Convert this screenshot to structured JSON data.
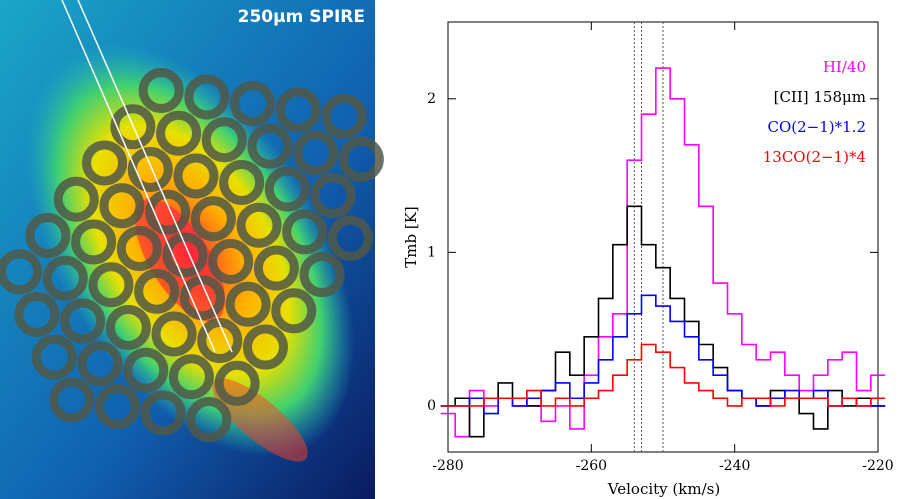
{
  "image": {
    "label": "250μm SPIRE"
  },
  "chart_data": {
    "type": "line",
    "step": true,
    "x_label": "Velocity (km/s)",
    "y_label": "Tmb [K]",
    "x": [
      -280,
      -278,
      -276,
      -274,
      -272,
      -270,
      -268,
      -266,
      -264,
      -262,
      -260,
      -258,
      -256,
      -254,
      -252,
      -250,
      -248,
      -246,
      -244,
      -242,
      -240,
      -238,
      -236,
      -234,
      -232,
      -230,
      -228,
      -226,
      -224,
      -222,
      -220
    ],
    "series": [
      {
        "name": "HI/40",
        "color": "#ff00ff",
        "values": [
          -0.05,
          -0.2,
          0.1,
          0.0,
          0.05,
          0.0,
          0.0,
          -0.1,
          0.0,
          -0.15,
          0.2,
          0.45,
          0.6,
          1.6,
          1.9,
          2.2,
          2.0,
          1.7,
          1.3,
          0.8,
          0.6,
          0.4,
          0.3,
          0.35,
          0.2,
          0.1,
          0.2,
          0.3,
          0.35,
          0.1,
          0.2
        ]
      },
      {
        "name": "[CII] 158μm",
        "color": "#000000",
        "values": [
          0.0,
          0.05,
          -0.2,
          0.05,
          0.15,
          0.05,
          0.0,
          0.1,
          0.35,
          0.2,
          0.45,
          0.7,
          1.05,
          1.3,
          1.05,
          0.9,
          0.7,
          0.55,
          0.4,
          0.25,
          0.1,
          0.05,
          0.0,
          0.1,
          0.05,
          -0.05,
          -0.15,
          0.1,
          0.0,
          0.05,
          0.0
        ]
      },
      {
        "name": "CO(2−1)*1.2",
        "color": "#0000ff",
        "values": [
          0,
          0,
          0.05,
          -0.05,
          0.05,
          0,
          0.05,
          0.1,
          0.15,
          0.05,
          0.15,
          0.3,
          0.45,
          0.6,
          0.72,
          0.65,
          0.55,
          0.45,
          0.3,
          0.2,
          0.1,
          0.05,
          0,
          0.05,
          0.1,
          0.05,
          0.1,
          0,
          0.05,
          0,
          0
        ]
      },
      {
        "name": "13CO(2−1)*4",
        "color": "#ff0000",
        "values": [
          0,
          0,
          0,
          0.05,
          0.05,
          0.05,
          0.1,
          0,
          0.05,
          0,
          0.05,
          0.1,
          0.2,
          0.3,
          0.4,
          0.35,
          0.25,
          0.15,
          0.1,
          0.05,
          0,
          0.05,
          0.05,
          0,
          0.05,
          0.05,
          0.05,
          0,
          0.05,
          0,
          0.05
        ]
      }
    ],
    "vlines": [
      -254,
      -253,
      -250
    ],
    "xlim": [
      -280,
      -220
    ],
    "xticks": [
      -280,
      -260,
      -240,
      -220
    ],
    "ylim": [
      -0.3,
      2.5
    ],
    "yticks": [
      0,
      1,
      2
    ],
    "legend": "upper right"
  }
}
